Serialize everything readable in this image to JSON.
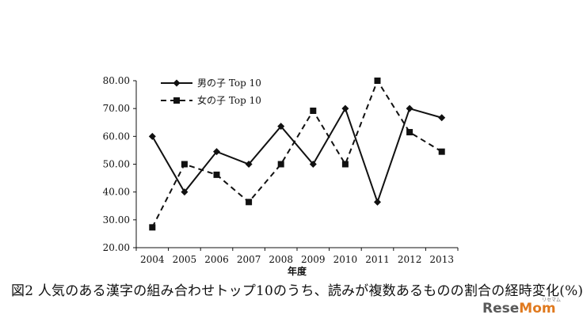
{
  "chart_data": {
    "type": "line",
    "categories": [
      "2004",
      "2005",
      "2006",
      "2007",
      "2008",
      "2009",
      "2010",
      "2011",
      "2012",
      "2013"
    ],
    "series": [
      {
        "name": "男の子 Top 10",
        "style": "solid-diamond",
        "values": [
          60.0,
          40.0,
          54.5,
          50.0,
          63.6,
          50.0,
          70.0,
          36.4,
          70.0,
          66.7
        ]
      },
      {
        "name": "女の子 Top 10",
        "style": "dashed-square",
        "values": [
          27.3,
          50.0,
          46.2,
          36.4,
          50.0,
          69.2,
          50.0,
          80.0,
          61.5,
          54.5
        ]
      }
    ],
    "ylim": [
      20,
      80
    ],
    "yticks": [
      "20.00",
      "30.00",
      "40.00",
      "50.00",
      "60.00",
      "70.00",
      "80.00"
    ],
    "xlabel": "年度",
    "ylabel": "",
    "grid": false,
    "legend_position": "top-left"
  },
  "caption": "図2 人気のある漢字の組み合わせトップ10のうち、読みが複数あるものの割合の経時変化(%)",
  "logo": {
    "main": "Rese",
    "accent": "Mom",
    "sub": "リセマム"
  },
  "colors": {
    "line": "#111111",
    "accent": "#e07a1f"
  }
}
